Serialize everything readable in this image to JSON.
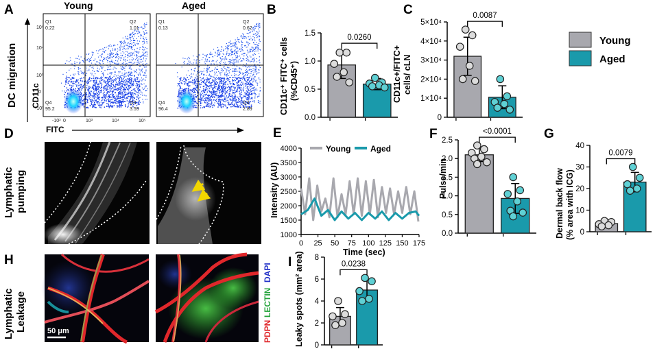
{
  "colors": {
    "young": "#a8a8ae",
    "aged": "#1a9aab",
    "flow": "#2255ee",
    "stain_red": "#e0272b",
    "stain_green": "#23a33a",
    "stain_blue": "#2433c8",
    "arrow": "#f2d600"
  },
  "legend": {
    "young": "Young",
    "aged": "Aged"
  },
  "panelA": {
    "letter": "A",
    "side_title": "DC migration",
    "col_young": "Young",
    "col_aged": "Aged",
    "ylab": "CD11c",
    "xlab": "FITC",
    "young_q": {
      "q1": "Q1",
      "q1v": "0.22",
      "q2": "Q2",
      "q2v": "1.01",
      "q3": "Q3",
      "q3v": "3.59",
      "q4": "Q4",
      "q4v": "95.2"
    },
    "aged_q": {
      "q1": "Q1",
      "q1v": "0.13",
      "q2": "Q2",
      "q2v": "0.62",
      "q3": "Q3",
      "q3v": "2.89",
      "q4": "Q4",
      "q4v": "96.4"
    },
    "yticks": [
      "10⁵",
      "10⁴",
      "10³",
      "0",
      "-10³"
    ],
    "xticks": [
      "-10³",
      "0",
      "10³",
      "10⁴",
      "10⁵"
    ]
  },
  "panelB": {
    "letter": "B",
    "ylabel1": "CD11c⁺ FITC⁺ cells",
    "ylabel2": "(%CD45⁺)",
    "yticks": [
      "0.0",
      "0.5",
      "1.0",
      "1.5"
    ],
    "pvalue": "0.0260"
  },
  "panelC": {
    "letter": "C",
    "ylabel1": "CD11c+/FITC+",
    "ylabel2": "cells/ cLN",
    "yticks": [
      "0",
      "1×10⁴",
      "2×10⁴",
      "3×10⁴",
      "4×10⁴",
      "5×10⁴"
    ],
    "pvalue": "0.0087"
  },
  "panelD": {
    "letter": "D",
    "side1": "Lymphatic",
    "side2": "pumping"
  },
  "panelE": {
    "letter": "E",
    "ylabel": "Intensity (AU)",
    "xlabel": "Time (sec)",
    "yticks": [
      "1000",
      "1500",
      "2000",
      "2500",
      "3000",
      "3500",
      "4000"
    ],
    "xticks": [
      "0",
      "25",
      "50",
      "75",
      "100",
      "125",
      "150",
      "175"
    ],
    "legend_young": "Young",
    "legend_aged": "Aged"
  },
  "panelF": {
    "letter": "F",
    "ylabel": "Pulse/min",
    "yticks": [
      "0.0",
      "0.5",
      "1.0",
      "1.5",
      "2.0",
      "2.5"
    ],
    "pvalue": "<0.0001"
  },
  "panelG": {
    "letter": "G",
    "ylabel1": "Dermal back flow",
    "ylabel2": "(% area with ICG)",
    "yticks": [
      "0",
      "10",
      "20",
      "30",
      "40"
    ],
    "pvalue": "0.0079"
  },
  "panelH": {
    "letter": "H",
    "side1": "Lymphatic",
    "side2": "Leakage",
    "scale": "50 μm",
    "stain_red": "PDPN",
    "stain_green": "LECTIN",
    "stain_blue": "DAPI"
  },
  "panelI": {
    "letter": "I",
    "ylabel": "Leaky spots (mm² area)",
    "yticks": [
      "0",
      "2",
      "4",
      "6",
      "8"
    ],
    "pvalue": "0.0238"
  },
  "chart_data": [
    {
      "type": "bar",
      "panel": "B",
      "categories": [
        "Young",
        "Aged"
      ],
      "values": [
        0.93,
        0.59
      ],
      "errors": [
        0.24,
        0.1
      ],
      "points": [
        [
          1.15,
          1.15,
          0.95,
          0.8,
          0.72,
          0.62
        ],
        [
          0.7,
          0.62,
          0.6,
          0.57,
          0.55,
          0.53
        ]
      ],
      "ylim": [
        0,
        1.5
      ],
      "ylabel": "CD11c⁺ FITC⁺ cells (%CD45⁺)",
      "pvalue": "0.0260"
    },
    {
      "type": "bar",
      "panel": "C",
      "categories": [
        "Young",
        "Aged"
      ],
      "values": [
        32000,
        10500
      ],
      "errors": [
        10000,
        6000
      ],
      "points": [
        [
          46000,
          43000,
          37000,
          27000,
          20000,
          19000
        ],
        [
          20000,
          11000,
          8000,
          7000,
          5000,
          4000
        ]
      ],
      "ylim": [
        0,
        50000
      ],
      "ylabel": "CD11c+/FITC+ cells/ cLN",
      "pvalue": "0.0087"
    },
    {
      "type": "line",
      "panel": "E",
      "xlabel": "Time (sec)",
      "ylabel": "Intensity (AU)",
      "xlim": [
        0,
        175
      ],
      "ylim": [
        1000,
        4000
      ],
      "series": [
        {
          "name": "Young",
          "x": [
            0,
            6,
            12,
            18,
            24,
            30,
            36,
            42,
            48,
            54,
            60,
            66,
            72,
            78,
            84,
            90,
            96,
            102,
            108,
            114,
            120,
            126,
            132,
            138,
            144,
            150,
            156,
            162,
            168,
            174
          ],
          "y": [
            2600,
            1700,
            2950,
            1500,
            2700,
            1800,
            2250,
            1600,
            2950,
            1600,
            2400,
            1700,
            2850,
            1700,
            2950,
            1650,
            2850,
            1700,
            2900,
            1600,
            2650,
            1750,
            2600,
            1700,
            2500,
            1750,
            2650,
            1700,
            2500,
            1450
          ]
        },
        {
          "name": "Aged",
          "x": [
            0,
            10,
            20,
            30,
            40,
            50,
            60,
            70,
            80,
            90,
            100,
            110,
            120,
            130,
            140,
            150,
            160,
            170,
            175
          ],
          "y": [
            1700,
            1850,
            2250,
            1650,
            1850,
            1500,
            1800,
            1550,
            1750,
            1500,
            1750,
            1550,
            1800,
            1500,
            1750,
            1550,
            1750,
            1800,
            1650
          ]
        }
      ]
    },
    {
      "type": "bar",
      "panel": "F",
      "categories": [
        "Young",
        "Aged"
      ],
      "values": [
        2.1,
        0.93
      ],
      "errors": [
        0.18,
        0.4
      ],
      "points": [
        [
          2.35,
          2.25,
          2.15,
          2.05,
          2.0,
          1.9,
          1.85
        ],
        [
          1.5,
          1.15,
          1.05,
          0.85,
          0.6,
          0.55,
          0.45
        ]
      ],
      "ylim": [
        0,
        2.5
      ],
      "ylabel": "Pulse/min",
      "pvalue": "<0.0001"
    },
    {
      "type": "bar",
      "panel": "G",
      "categories": [
        "Young",
        "Aged"
      ],
      "values": [
        3.8,
        23
      ],
      "errors": [
        1.2,
        4.5
      ],
      "points": [
        [
          5,
          4.5,
          3.5,
          3,
          2.5
        ],
        [
          30,
          25,
          22,
          20,
          19
        ]
      ],
      "ylim": [
        0,
        40
      ],
      "ylabel": "Dermal back flow (% area with ICG)",
      "pvalue": "0.0079"
    },
    {
      "type": "bar",
      "panel": "I",
      "categories": [
        "Young",
        "Aged"
      ],
      "values": [
        2.6,
        5.0
      ],
      "errors": [
        0.8,
        0.9
      ],
      "points": [
        [
          4.0,
          2.8,
          2.6,
          2.0,
          1.8
        ],
        [
          6.1,
          5.8,
          4.9,
          4.2,
          4.0
        ]
      ],
      "ylim": [
        0,
        8
      ],
      "ylabel": "Leaky spots (mm² area)",
      "pvalue": "0.0238"
    }
  ]
}
